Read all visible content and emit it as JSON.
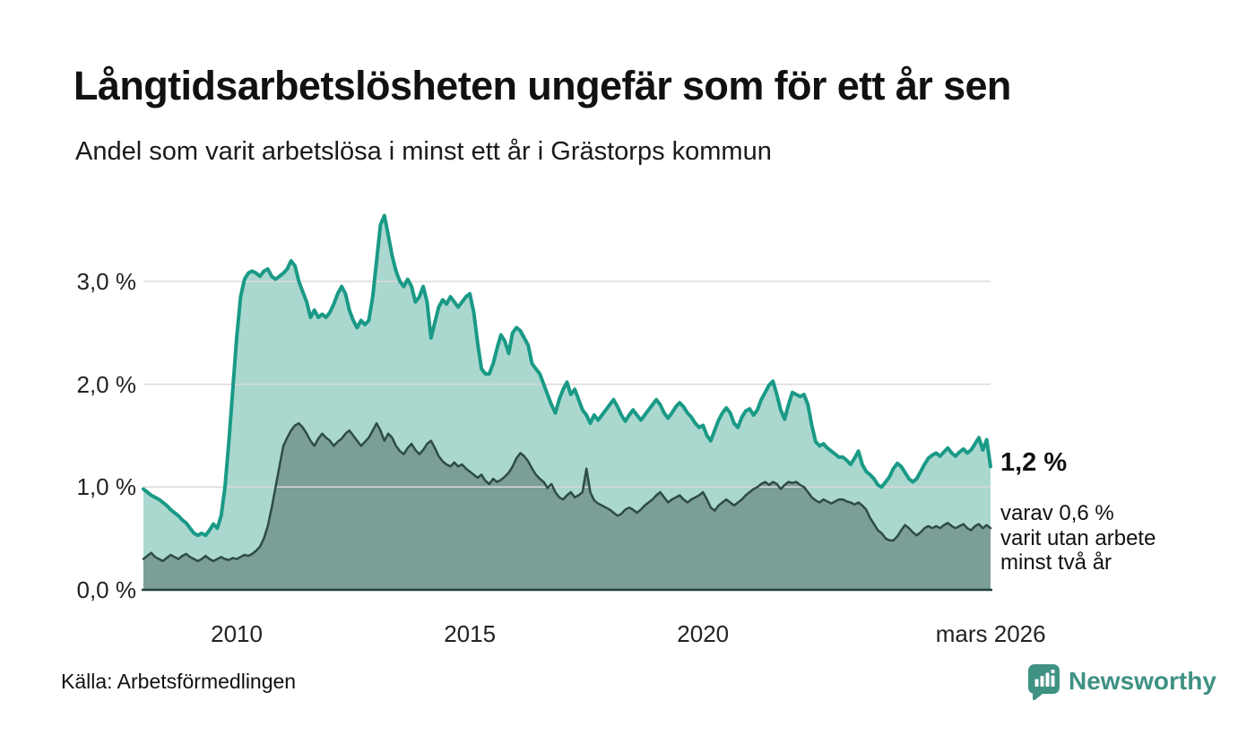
{
  "header": {
    "title": "Långtidsarbetslösheten ungefär som för ett år sen",
    "subtitle": "Andel som varit arbetslösa i minst ett år i Grästorps kommun"
  },
  "chart_data": {
    "type": "area",
    "title": "Långtidsarbetslösheten ungefär som för ett år sen",
    "xlabel": "",
    "ylabel": "",
    "unit": "%",
    "x_start": "2008-01",
    "x_end": "2026-03",
    "ylim": [
      0,
      3.8
    ],
    "grid": true,
    "grid_color": "#d9d9d9",
    "axis_color": "#22423c",
    "y_ticks": [
      {
        "label": "3,0 %",
        "value": 3
      },
      {
        "label": "2,0 %",
        "value": 2
      },
      {
        "label": "1,0 %",
        "value": 1
      },
      {
        "label": "0,0 %",
        "value": 0
      }
    ],
    "x_ticks": [
      {
        "label": "2010",
        "t": 2010
      },
      {
        "label": "2015",
        "t": 2015
      },
      {
        "label": "2020",
        "t": 2020
      },
      {
        "label": "mars 2026",
        "t": 2026.17
      }
    ],
    "series": [
      {
        "id": "minst-ett-ar",
        "name": "Arbetslösa minst ett år",
        "color": "#1a9a86",
        "fill": "#aad8cf",
        "latest": "1,2 %",
        "values": [
          0.98,
          0.95,
          0.92,
          0.9,
          0.88,
          0.85,
          0.82,
          0.78,
          0.75,
          0.72,
          0.68,
          0.65,
          0.6,
          0.55,
          0.53,
          0.55,
          0.53,
          0.58,
          0.64,
          0.6,
          0.72,
          1.0,
          1.45,
          1.95,
          2.45,
          2.85,
          3.02,
          3.08,
          3.1,
          3.08,
          3.05,
          3.1,
          3.12,
          3.05,
          3.02,
          3.05,
          3.08,
          3.12,
          3.2,
          3.15,
          3.0,
          2.9,
          2.8,
          2.65,
          2.72,
          2.65,
          2.68,
          2.65,
          2.7,
          2.78,
          2.88,
          2.95,
          2.88,
          2.72,
          2.62,
          2.55,
          2.62,
          2.58,
          2.62,
          2.85,
          3.2,
          3.55,
          3.64,
          3.45,
          3.25,
          3.1,
          3.0,
          2.95,
          3.02,
          2.95,
          2.8,
          2.85,
          2.95,
          2.8,
          2.45,
          2.6,
          2.75,
          2.82,
          2.78,
          2.85,
          2.8,
          2.75,
          2.8,
          2.85,
          2.88,
          2.7,
          2.4,
          2.15,
          2.1,
          2.1,
          2.2,
          2.35,
          2.48,
          2.42,
          2.3,
          2.5,
          2.55,
          2.52,
          2.45,
          2.38,
          2.2,
          2.15,
          2.1,
          2.0,
          1.9,
          1.8,
          1.72,
          1.85,
          1.95,
          2.02,
          1.9,
          1.95,
          1.85,
          1.75,
          1.7,
          1.62,
          1.7,
          1.65,
          1.7,
          1.75,
          1.8,
          1.85,
          1.78,
          1.7,
          1.64,
          1.7,
          1.75,
          1.7,
          1.65,
          1.7,
          1.75,
          1.8,
          1.85,
          1.8,
          1.72,
          1.67,
          1.72,
          1.78,
          1.82,
          1.78,
          1.72,
          1.68,
          1.62,
          1.58,
          1.6,
          1.5,
          1.45,
          1.55,
          1.65,
          1.72,
          1.77,
          1.72,
          1.62,
          1.58,
          1.68,
          1.74,
          1.76,
          1.7,
          1.75,
          1.85,
          1.92,
          1.99,
          2.03,
          1.9,
          1.75,
          1.66,
          1.8,
          1.92,
          1.9,
          1.88,
          1.9,
          1.8,
          1.6,
          1.44,
          1.4,
          1.42,
          1.38,
          1.35,
          1.32,
          1.29,
          1.29,
          1.26,
          1.22,
          1.28,
          1.35,
          1.22,
          1.15,
          1.12,
          1.08,
          1.02,
          1.0,
          1.05,
          1.1,
          1.18,
          1.23,
          1.2,
          1.14,
          1.08,
          1.05,
          1.08,
          1.15,
          1.22,
          1.28,
          1.31,
          1.33,
          1.3,
          1.34,
          1.38,
          1.33,
          1.3,
          1.34,
          1.37,
          1.33,
          1.36,
          1.42,
          1.48,
          1.36,
          1.46,
          1.2
        ]
      },
      {
        "id": "minst-tva-ar",
        "name": "Arbetslösa minst två år",
        "color": "#2e4b45",
        "fill": "#7b9e96",
        "latest": "0,6 %",
        "values": [
          0.3,
          0.33,
          0.36,
          0.32,
          0.3,
          0.28,
          0.31,
          0.34,
          0.32,
          0.3,
          0.33,
          0.35,
          0.32,
          0.3,
          0.28,
          0.3,
          0.33,
          0.3,
          0.28,
          0.3,
          0.32,
          0.3,
          0.29,
          0.31,
          0.3,
          0.32,
          0.34,
          0.33,
          0.35,
          0.38,
          0.42,
          0.5,
          0.62,
          0.8,
          1.0,
          1.2,
          1.4,
          1.48,
          1.55,
          1.6,
          1.62,
          1.58,
          1.52,
          1.45,
          1.4,
          1.47,
          1.52,
          1.48,
          1.45,
          1.4,
          1.44,
          1.47,
          1.52,
          1.55,
          1.5,
          1.45,
          1.4,
          1.44,
          1.48,
          1.55,
          1.62,
          1.55,
          1.45,
          1.52,
          1.48,
          1.4,
          1.35,
          1.32,
          1.38,
          1.42,
          1.36,
          1.32,
          1.36,
          1.42,
          1.45,
          1.38,
          1.3,
          1.25,
          1.22,
          1.2,
          1.24,
          1.2,
          1.22,
          1.18,
          1.15,
          1.12,
          1.09,
          1.12,
          1.06,
          1.03,
          1.08,
          1.05,
          1.07,
          1.1,
          1.14,
          1.2,
          1.28,
          1.33,
          1.3,
          1.25,
          1.18,
          1.12,
          1.08,
          1.05,
          0.99,
          1.03,
          0.95,
          0.9,
          0.88,
          0.92,
          0.95,
          0.9,
          0.92,
          0.95,
          1.18,
          0.95,
          0.87,
          0.84,
          0.82,
          0.8,
          0.78,
          0.75,
          0.72,
          0.74,
          0.78,
          0.8,
          0.78,
          0.75,
          0.78,
          0.82,
          0.85,
          0.88,
          0.92,
          0.95,
          0.9,
          0.85,
          0.88,
          0.9,
          0.92,
          0.88,
          0.85,
          0.88,
          0.9,
          0.92,
          0.95,
          0.88,
          0.8,
          0.77,
          0.82,
          0.85,
          0.88,
          0.85,
          0.82,
          0.85,
          0.88,
          0.92,
          0.95,
          0.98,
          1.0,
          1.03,
          1.05,
          1.02,
          1.05,
          1.03,
          0.98,
          1.02,
          1.05,
          1.04,
          1.05,
          1.02,
          1.0,
          0.95,
          0.9,
          0.87,
          0.85,
          0.88,
          0.86,
          0.84,
          0.86,
          0.88,
          0.88,
          0.86,
          0.85,
          0.83,
          0.85,
          0.82,
          0.78,
          0.7,
          0.64,
          0.58,
          0.55,
          0.5,
          0.48,
          0.48,
          0.52,
          0.58,
          0.63,
          0.6,
          0.56,
          0.53,
          0.56,
          0.6,
          0.62,
          0.6,
          0.62,
          0.6,
          0.63,
          0.65,
          0.62,
          0.6,
          0.62,
          0.64,
          0.6,
          0.58,
          0.62,
          0.64,
          0.6,
          0.63,
          0.6
        ]
      }
    ],
    "annotations": {
      "latest": "1,2 %",
      "note": "varav 0,6 %\nvarit utan arbete\nminst två år"
    }
  },
  "footer": {
    "source": "Källa: Arbetsförmedlingen",
    "brand": "Newsworthy"
  },
  "colors": {
    "line_primary": "#1a9a86",
    "fill_primary": "#aad8cf",
    "line_secondary": "#2e4b45",
    "fill_secondary": "#7b9e96",
    "gridline": "#d9d9d9",
    "brand_teal": "#3f9183"
  }
}
